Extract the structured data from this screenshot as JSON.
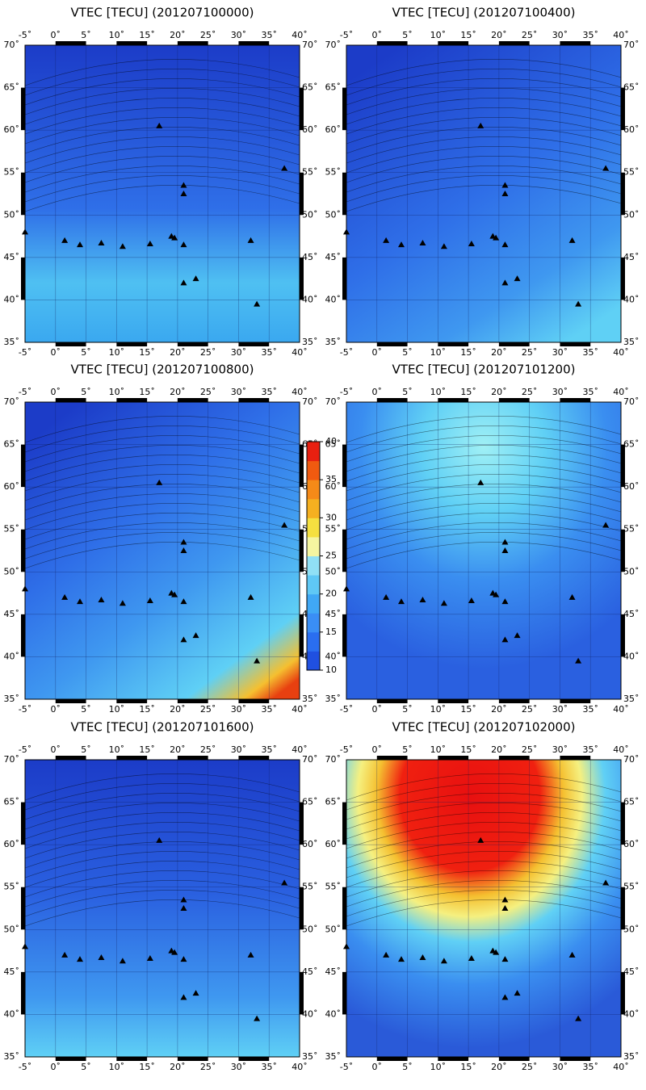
{
  "panels": [
    {
      "title": "VTEC [TECU] (201207100000)"
    },
    {
      "title": "VTEC [TECU] (201207100400)"
    },
    {
      "title": "VTEC [TECU] (201207100800)"
    },
    {
      "title": "VTEC [TECU] (201207101200)"
    },
    {
      "title": "VTEC [TECU] (201207101600)"
    },
    {
      "title": "VTEC [TECU] (201207102000)"
    }
  ],
  "lon_ticks": [
    {
      "value": -5,
      "label": "-5˚"
    },
    {
      "value": 0,
      "label": "0˚"
    },
    {
      "value": 5,
      "label": "5˚"
    },
    {
      "value": 10,
      "label": "10˚"
    },
    {
      "value": 15,
      "label": "15˚"
    },
    {
      "value": 20,
      "label": "20˚"
    },
    {
      "value": 25,
      "label": "25˚"
    },
    {
      "value": 30,
      "label": "30˚"
    },
    {
      "value": 35,
      "label": "35˚"
    },
    {
      "value": 40,
      "label": "40˚"
    }
  ],
  "lat_ticks": [
    {
      "value": 35,
      "label": "35˚"
    },
    {
      "value": 40,
      "label": "40˚"
    },
    {
      "value": 45,
      "label": "45˚"
    },
    {
      "value": 50,
      "label": "50˚"
    },
    {
      "value": 55,
      "label": "55˚"
    },
    {
      "value": 60,
      "label": "60˚"
    },
    {
      "value": 65,
      "label": "65˚"
    },
    {
      "value": 70,
      "label": "70˚"
    }
  ],
  "colorbar": {
    "range": [
      10,
      40
    ],
    "ticks": [
      10,
      15,
      20,
      25,
      30,
      35,
      40
    ]
  }
}
